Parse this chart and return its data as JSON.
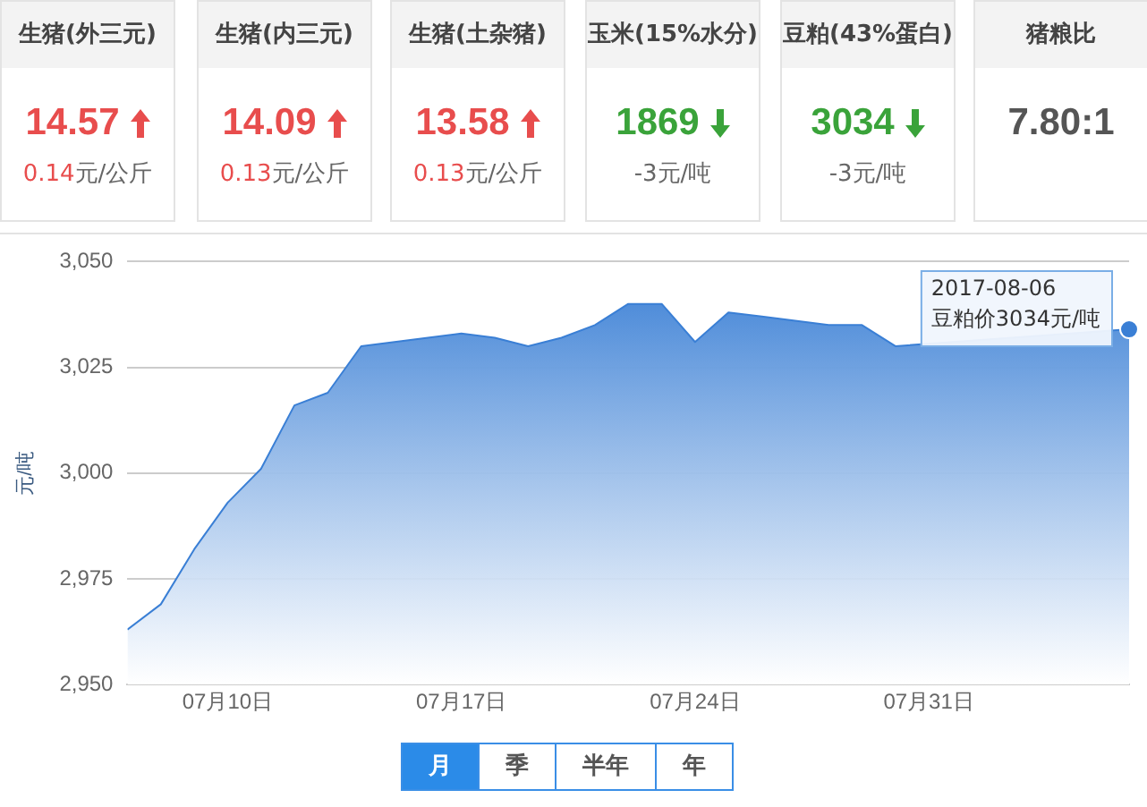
{
  "chart_data": [
    {
      "type": "other",
      "title": "生猪(外三元)",
      "annotations": [
        "14.57",
        "0.14元/公斤"
      ]
    },
    {
      "type": "other",
      "title": "生猪(内三元)",
      "annotations": [
        "14.09",
        "0.13元/公斤"
      ]
    },
    {
      "type": "other",
      "title": "生猪(土杂猪)",
      "annotations": [
        "13.58",
        "0.13元/公斤"
      ]
    },
    {
      "type": "other",
      "title": "玉米(15%水分)",
      "annotations": [
        "1869",
        "-3元/吨"
      ]
    },
    {
      "type": "other",
      "title": "豆粕(43%蛋白)",
      "annotations": [
        "3034",
        "-3元/吨"
      ]
    },
    {
      "type": "other",
      "title": "猪粮比",
      "annotations": [
        "7.80:1"
      ]
    },
    {
      "type": "area",
      "ylabel": "元/吨",
      "x": [
        "2017-07-07",
        "2017-07-08",
        "2017-07-09",
        "2017-07-10",
        "2017-07-11",
        "2017-07-12",
        "2017-07-13",
        "2017-07-14",
        "2017-07-15",
        "2017-07-16",
        "2017-07-17",
        "2017-07-18",
        "2017-07-19",
        "2017-07-20",
        "2017-07-21",
        "2017-07-22",
        "2017-07-23",
        "2017-07-24",
        "2017-07-25",
        "2017-07-26",
        "2017-07-27",
        "2017-07-28",
        "2017-07-29",
        "2017-07-30",
        "2017-07-31",
        "2017-08-01",
        "2017-08-02",
        "2017-08-03",
        "2017-08-04",
        "2017-08-05",
        "2017-08-06"
      ],
      "series": [
        {
          "color": "#3a7fd5",
          "values": [
            2963,
            2969,
            2982,
            2993,
            3001,
            3016,
            3019,
            3030,
            3031,
            3032,
            3033,
            3032,
            3030,
            3032,
            3035,
            3040,
            3040,
            3031,
            3038,
            3037,
            3036,
            3035,
            3035,
            3030,
            null,
            null,
            null,
            null,
            null,
            null,
            3034
          ]
        }
      ],
      "xlim": [
        "2017-07-07",
        "2017-08-06"
      ],
      "xticks": [
        {
          "value": "2017-07-10",
          "label": "07月10日"
        },
        {
          "value": "2017-07-17",
          "label": "07月17日"
        },
        {
          "value": "2017-07-24",
          "label": "07月24日"
        },
        {
          "value": "2017-07-31",
          "label": "07月31日"
        }
      ],
      "ylim": [
        2950,
        3050
      ],
      "yticks": [
        {
          "value": 2950,
          "label": "2,950"
        },
        {
          "value": 2975,
          "label": "2,975"
        },
        {
          "value": 3000,
          "label": "3,000"
        },
        {
          "value": 3025,
          "label": "3,025"
        },
        {
          "value": 3050,
          "label": "3,050"
        }
      ],
      "grid": "y",
      "legend": false,
      "marker": "none",
      "annotations": [
        {
          "text": "2017-08-06\n豆粕价3034元/吨",
          "x": "2017-08-06",
          "y": 3034
        }
      ]
    },
    {
      "type": "other",
      "annotations": [
        "月",
        "季",
        "半年",
        "年"
      ]
    }
  ]
}
